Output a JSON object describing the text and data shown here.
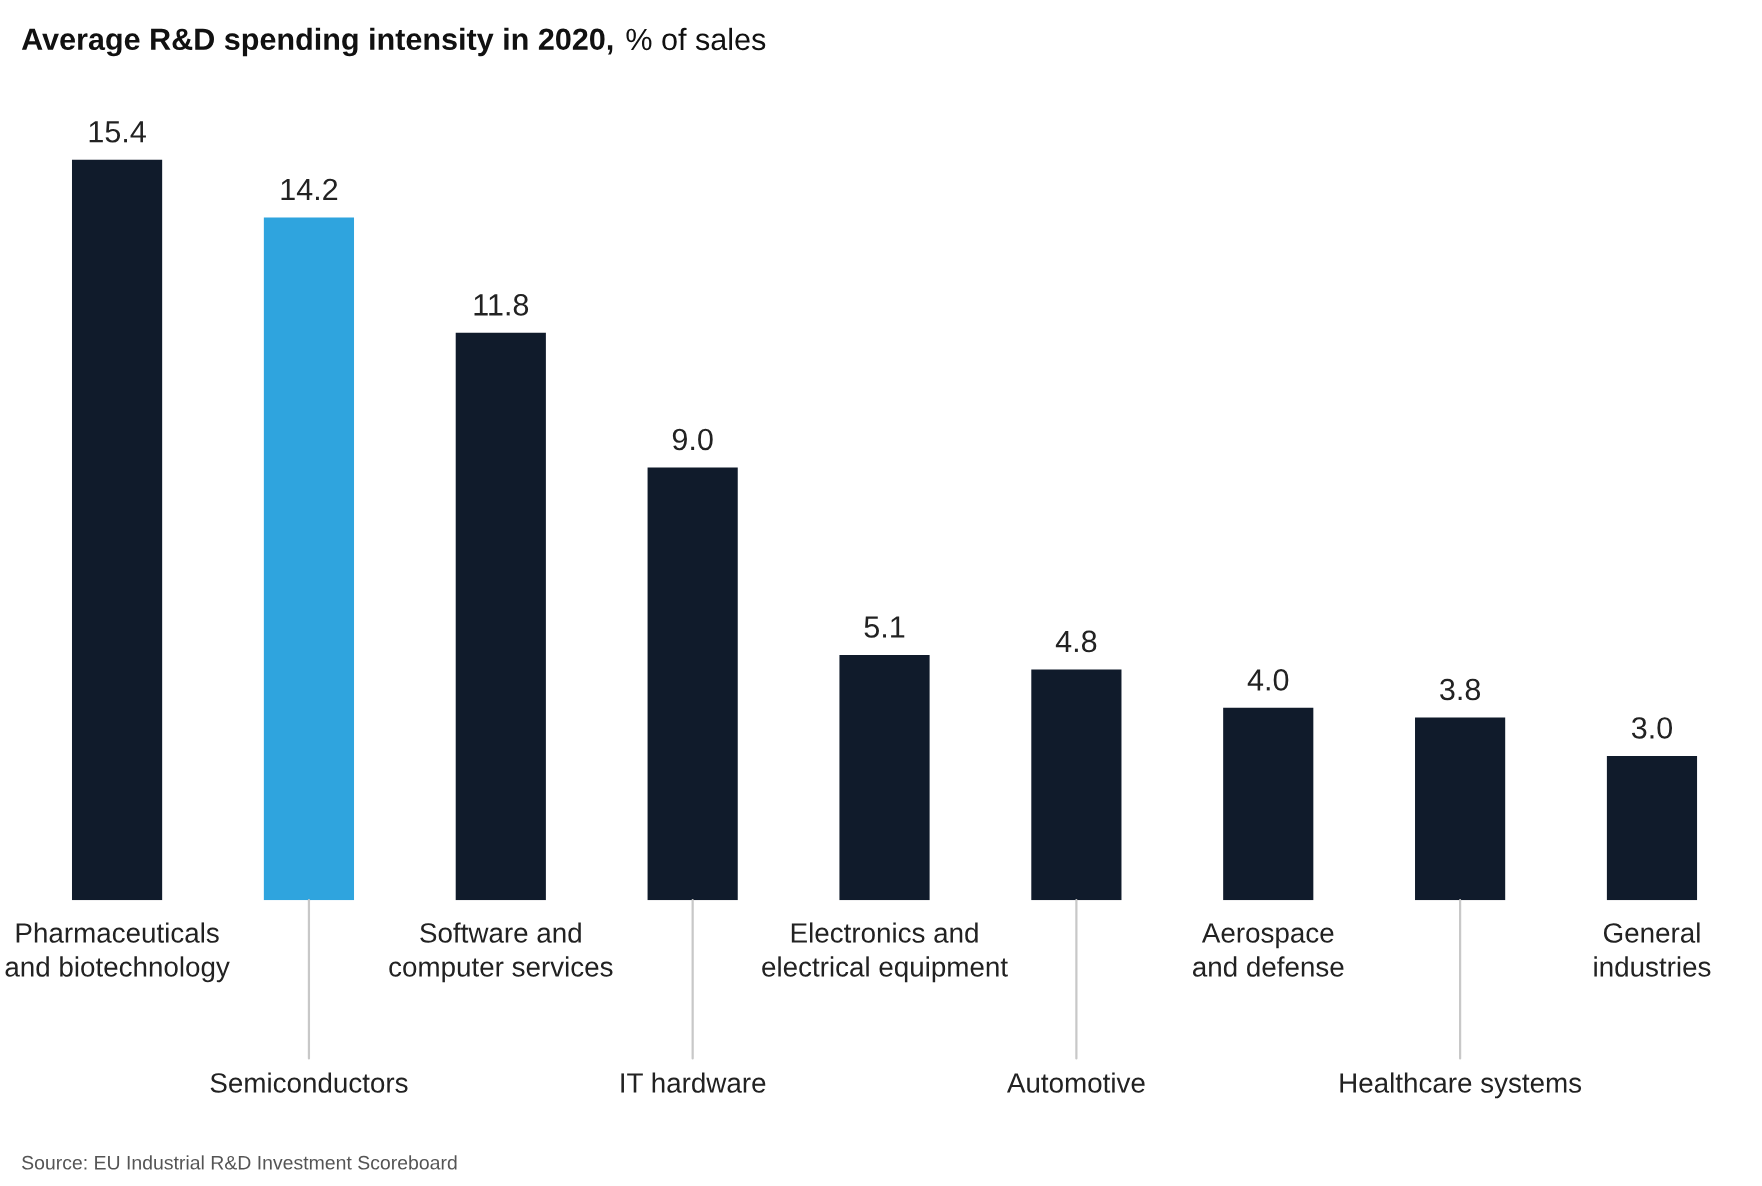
{
  "chart_data": {
    "type": "bar",
    "title": "Average R&D spending intensity in 2020,",
    "subtitle": "% of sales",
    "categories": [
      "Pharmaceuticals\nand biotechnology",
      "Semiconductors",
      "Software and\ncomputer services",
      "IT hardware",
      "Electronics and\nelectrical equipment",
      "Automotive",
      "Aerospace\nand defense",
      "Healthcare systems",
      "General\nindustries"
    ],
    "values": [
      15.4,
      14.2,
      11.8,
      9.0,
      5.1,
      4.8,
      4.0,
      3.8,
      3.0
    ],
    "colors": [
      "#101b2b",
      "#2fa4de",
      "#101b2b",
      "#101b2b",
      "#101b2b",
      "#101b2b",
      "#101b2b",
      "#101b2b",
      "#101b2b"
    ],
    "value_labels": [
      "15.4",
      "14.2",
      "11.8",
      "9.0",
      "5.1",
      "4.8",
      "4.0",
      "3.8",
      "3.0"
    ],
    "annotations": [
      "Source: EU Industrial R&D Investment Scoreboard"
    ],
    "legend": false
  }
}
